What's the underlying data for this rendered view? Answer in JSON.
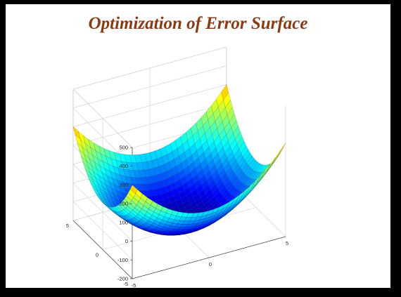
{
  "page_title": "Optimization of Error Surface",
  "chart_data": {
    "type": "surface",
    "title": "",
    "surface": "error surface z = 10*x^2 + 10*y^2 - 200 (bowl-shaped paraboloid)",
    "x_range": [
      -5,
      5
    ],
    "y_range": [
      -5,
      5
    ],
    "zlim": [
      -200,
      500
    ],
    "z_ticks": [
      "500",
      "400",
      "300",
      "200",
      "100",
      "0",
      "-100",
      "-200"
    ],
    "y_axis_ticks": [
      "5",
      "0",
      "-5"
    ],
    "x_axis_ticks": [
      "-5",
      "0",
      "5"
    ],
    "colormap": "jet",
    "grid": true,
    "colors": {
      "title": "#8b3a12",
      "frame_border": "#000000",
      "background": "#ffffff"
    }
  }
}
